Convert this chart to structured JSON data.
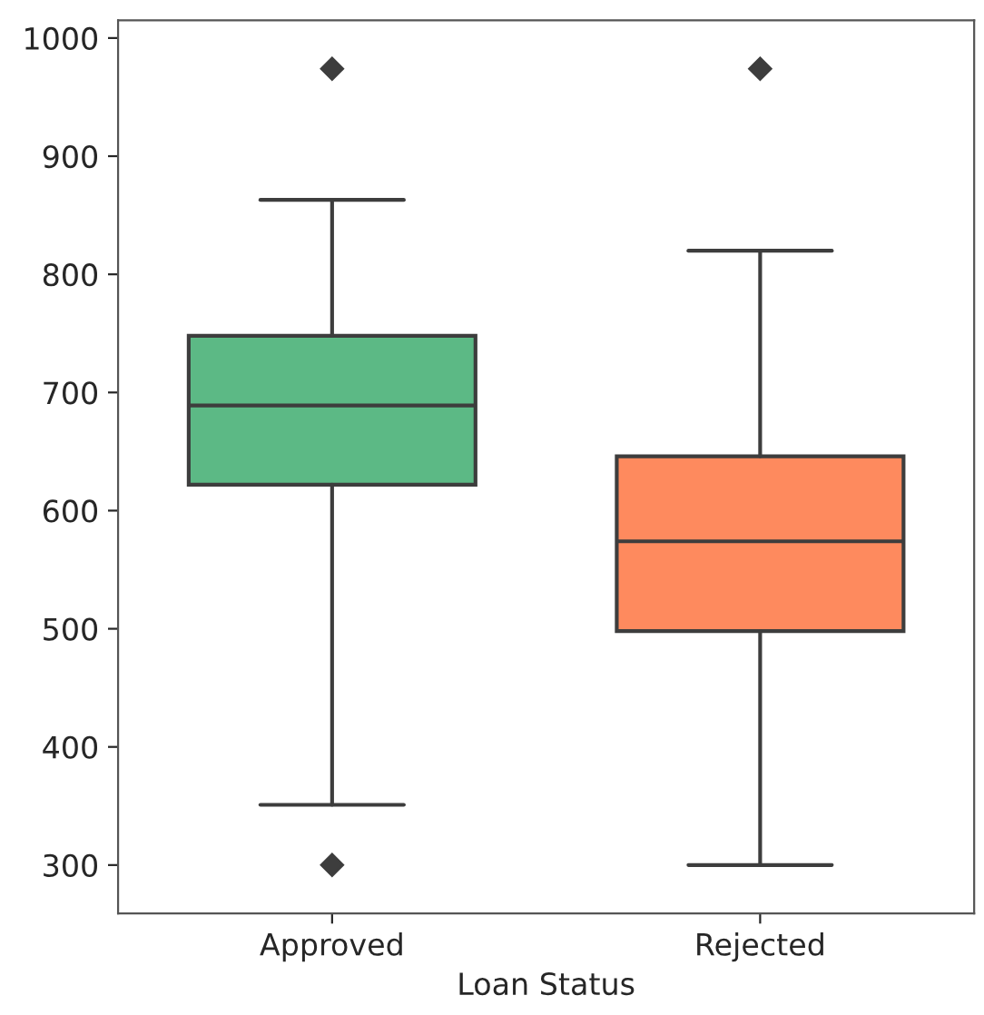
{
  "chart_data": {
    "type": "box",
    "xlabel": "Loan Status",
    "categories": [
      "Approved",
      "Rejected"
    ],
    "boxes": [
      {
        "low": 351,
        "q1": 622,
        "median": 689,
        "q3": 748,
        "high": 863,
        "outliers": [
          974,
          300
        ]
      },
      {
        "low": 300,
        "q1": 498,
        "median": 574,
        "q3": 646,
        "high": 820,
        "outliers": [
          974
        ]
      }
    ],
    "colors": [
      "#5cb985",
      "#fe8a5e"
    ],
    "ylim": [
      259,
      1015
    ],
    "yticks": [
      300,
      400,
      500,
      600,
      700,
      800,
      900,
      1000
    ],
    "grid": false,
    "marker": "diamond"
  }
}
